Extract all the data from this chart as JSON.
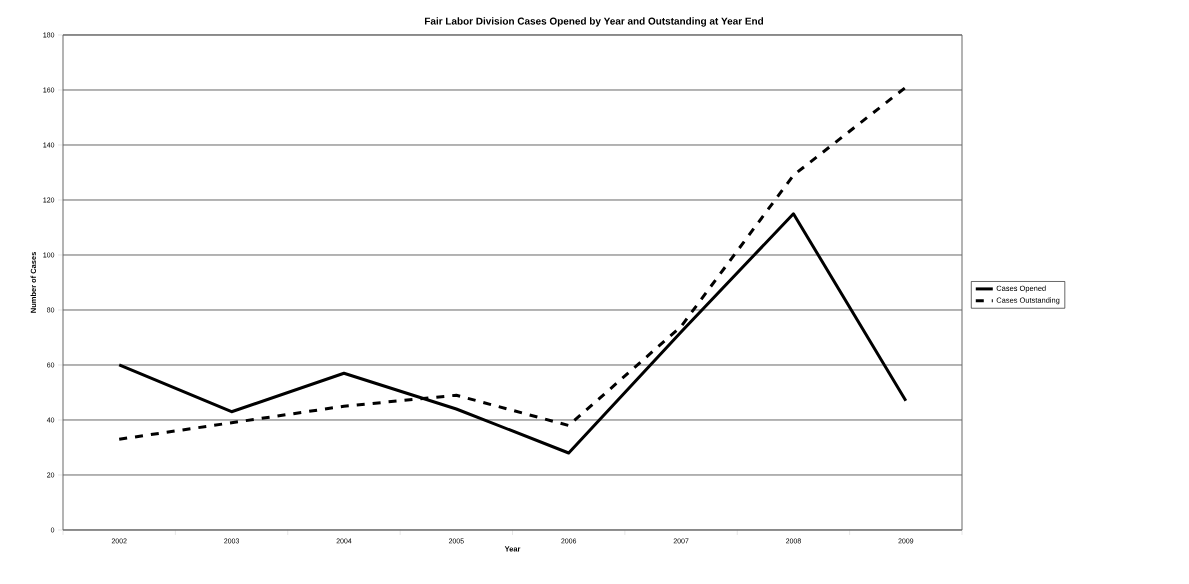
{
  "chart_data": {
    "type": "line",
    "title": "Fair Labor Division Cases Opened by Year and Outstanding at Year End",
    "xlabel": "Year",
    "ylabel": "Number of Cases",
    "categories": [
      "2002",
      "2003",
      "2004",
      "2005",
      "2006",
      "2007",
      "2008",
      "2009"
    ],
    "series": [
      {
        "name": "Cases Opened",
        "color": "#000000",
        "line_style": "solid",
        "values": [
          60,
          43,
          57,
          44,
          28,
          72,
          115,
          47
        ]
      },
      {
        "name": "Cases Outstanding",
        "color": "#000000",
        "line_style": "dashed",
        "values": [
          33,
          39,
          45,
          49,
          38,
          74,
          129,
          161
        ]
      }
    ],
    "ylim": [
      0,
      180
    ],
    "yticks": [
      0,
      20,
      40,
      60,
      80,
      100,
      120,
      140,
      160,
      180
    ],
    "grid": "y",
    "legend": "right",
    "marker": "none"
  }
}
